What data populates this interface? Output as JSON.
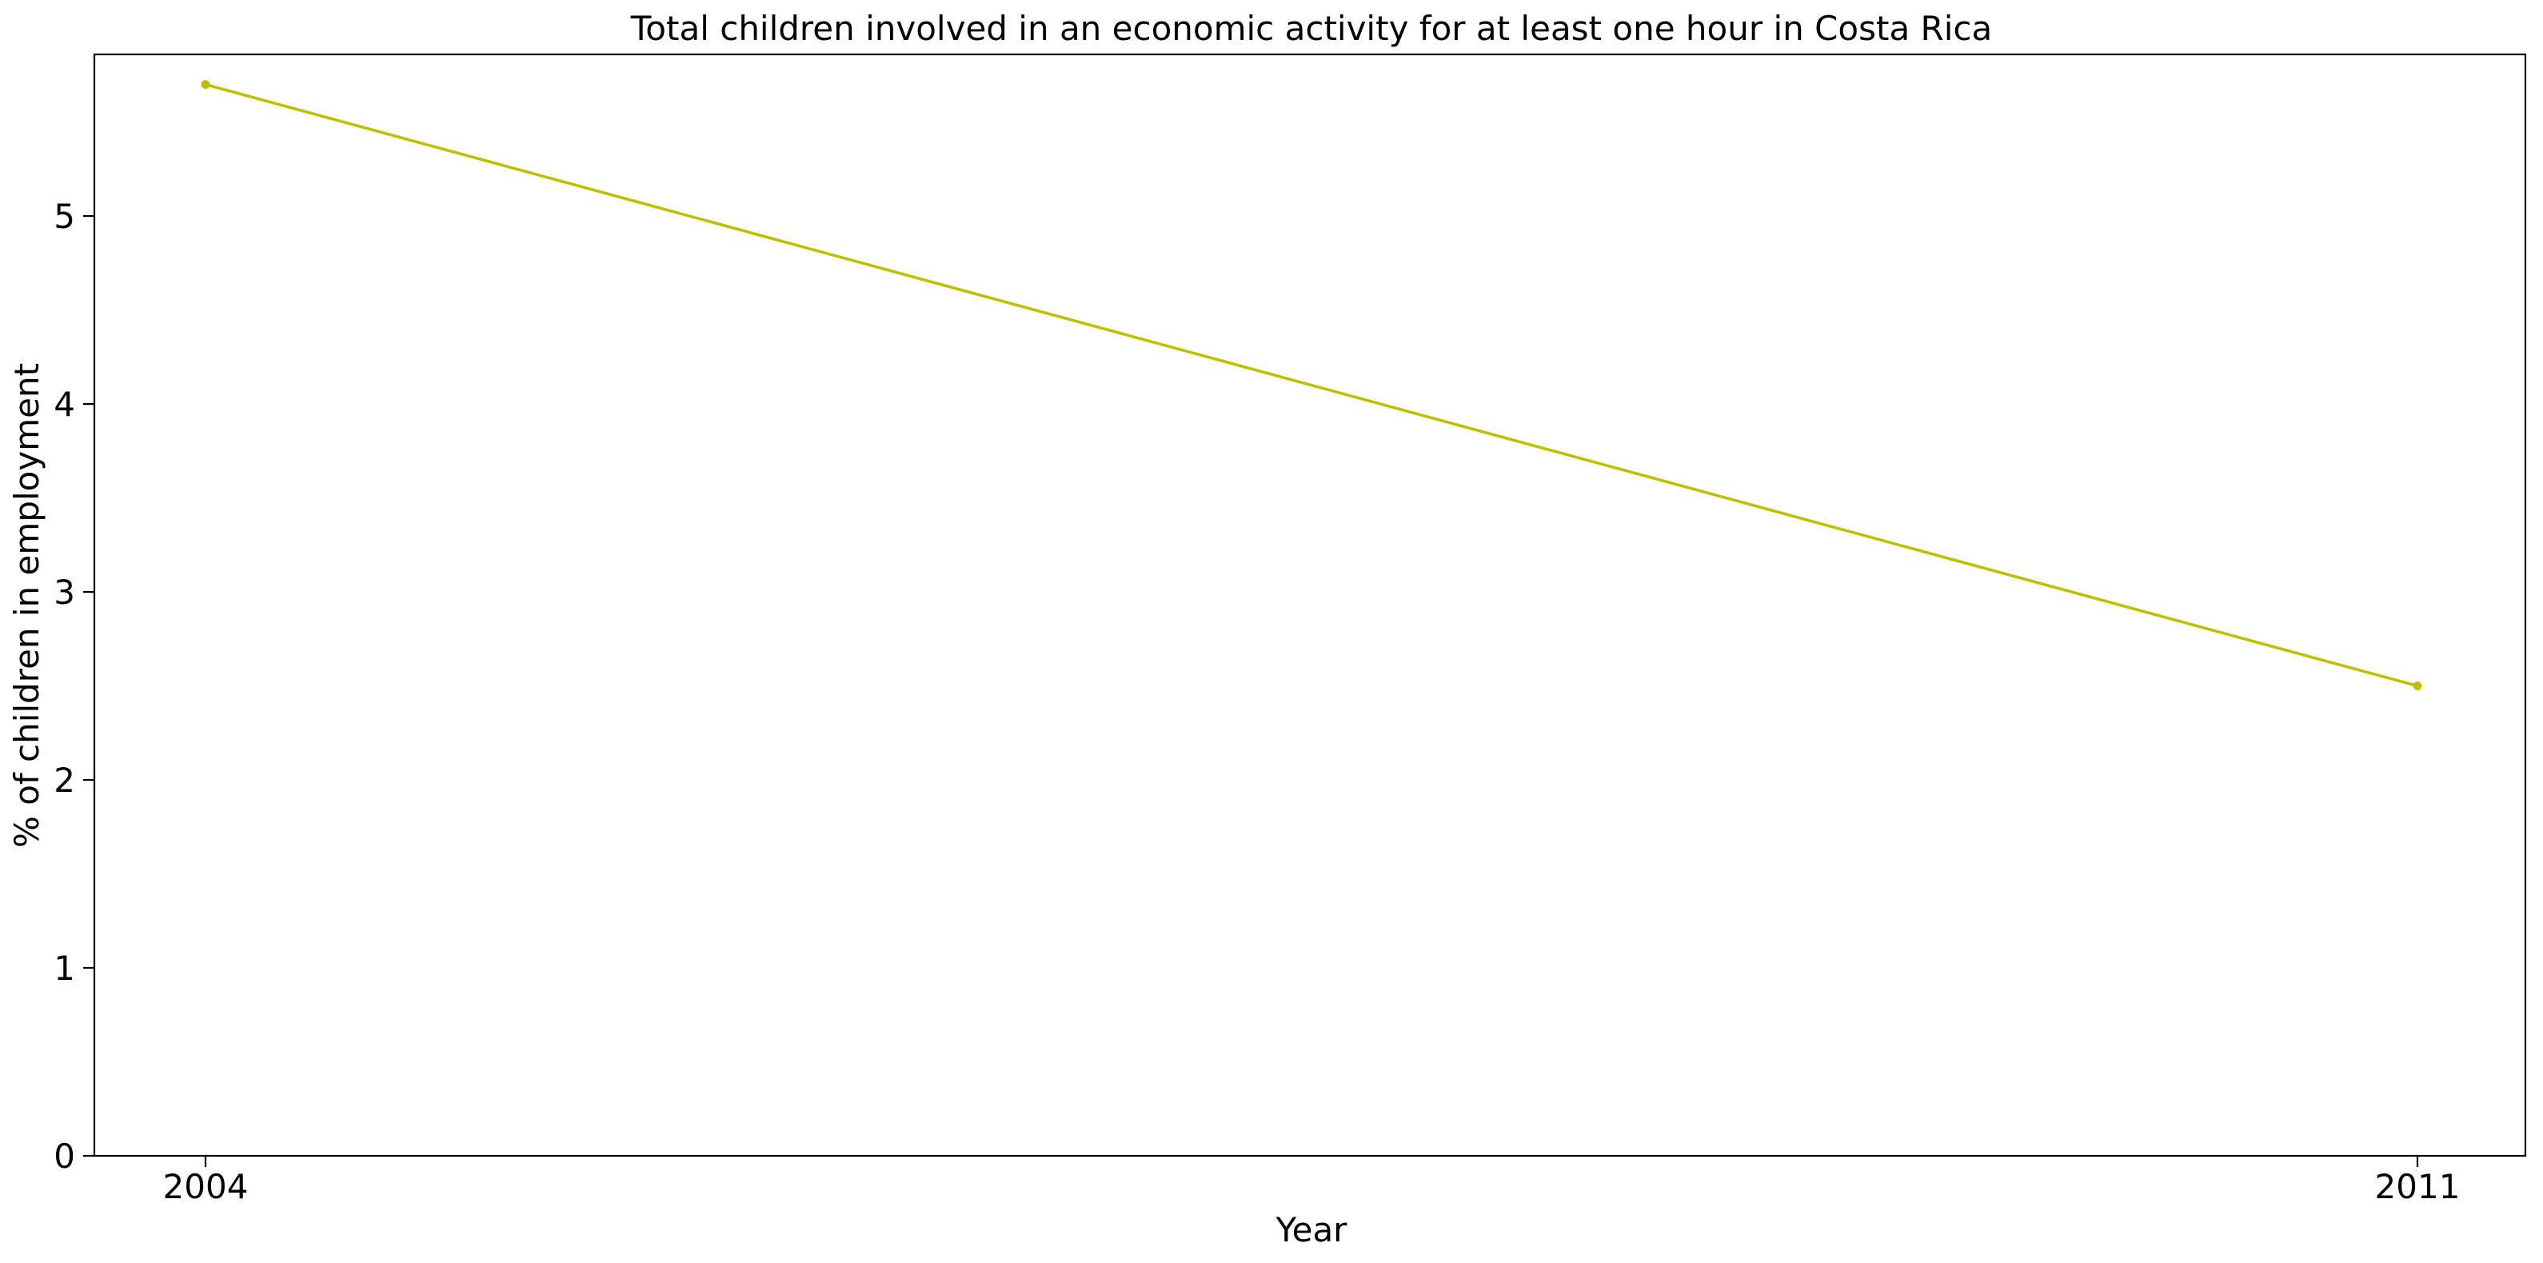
{
  "chart_data": {
    "type": "line",
    "title": "Total children involved in an economic activity for at least one hour in Costa Rica",
    "xlabel": "Year",
    "ylabel": "% of children in employment",
    "x": [
      2004,
      2011
    ],
    "x_tick_labels": [
      "2004",
      "2011"
    ],
    "y_ticks": [
      0,
      1,
      2,
      3,
      4,
      5
    ],
    "ylim": [
      0,
      5.86
    ],
    "grid": false,
    "legend": "none",
    "series": [
      {
        "color": "#bfbf00",
        "marker": "point",
        "values": [
          5.7,
          2.5
        ]
      }
    ]
  }
}
